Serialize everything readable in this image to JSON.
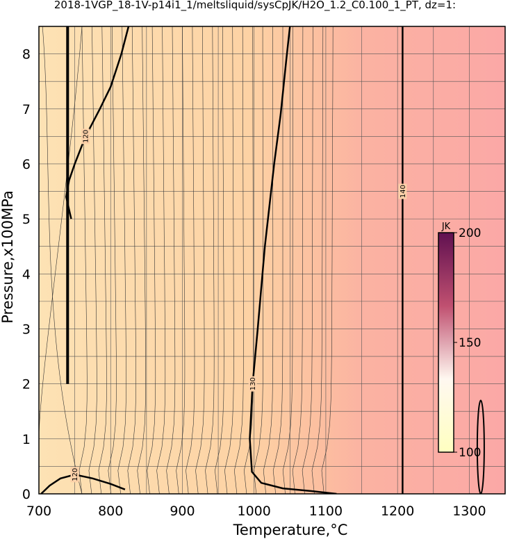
{
  "chart_data": {
    "type": "contour",
    "title": "2018-1VGP_18-1V-p14i1_1/meltsliquid/sysCpJK/H2O_1.2_C0.100_1_PT, dz=1:",
    "xlabel": "Temperature,°C",
    "ylabel": "Pressure,x100MPa",
    "xlim": [
      700,
      1350
    ],
    "ylim": [
      0,
      8.5
    ],
    "xticks": [
      700,
      800,
      900,
      1000,
      1100,
      1200,
      1300
    ],
    "yticks": [
      0,
      1,
      2,
      3,
      4,
      5,
      6,
      7,
      8
    ],
    "xgrid": [
      750,
      850,
      950,
      1050,
      1150,
      1250
    ],
    "ygrid": [
      0.5,
      1.5,
      2.5,
      3.5,
      4.5,
      5.5,
      6.5,
      7.5
    ],
    "contours": [
      {
        "level": 130,
        "x": [
          1050,
          1045,
          1037,
          1028,
          1015,
          1005,
          998,
          994,
          997,
          1010,
          1040,
          1080,
          1115
        ],
        "y": [
          8.5,
          7.9,
          6.9,
          6.0,
          4.5,
          3.0,
          2.0,
          1.0,
          0.4,
          0.2,
          0.1,
          0.05,
          0
        ]
      },
      {
        "level": 140,
        "x": [
          1207,
          1207,
          1207
        ],
        "y": [
          0,
          5.5,
          8.5
        ]
      },
      {
        "level": 120,
        "x": [
          825,
          815,
          800,
          785,
          765,
          750,
          742,
          738,
          745
        ],
        "y": [
          8.5,
          8.0,
          7.4,
          7.0,
          6.5,
          6.0,
          5.7,
          5.4,
          5.0
        ]
      },
      {
        "level": 120,
        "x": [
          703,
          715,
          730,
          750,
          775,
          800,
          820
        ],
        "y": [
          0,
          0.15,
          0.28,
          0.35,
          0.28,
          0.18,
          0.08
        ]
      }
    ],
    "colorbar": {
      "label": "JK",
      "lim": [
        100,
        200
      ],
      "ticks": [
        100,
        150,
        200
      ],
      "colors": [
        "#ffffc0",
        "#fff8f0",
        "#c05070",
        "#601050"
      ]
    }
  }
}
